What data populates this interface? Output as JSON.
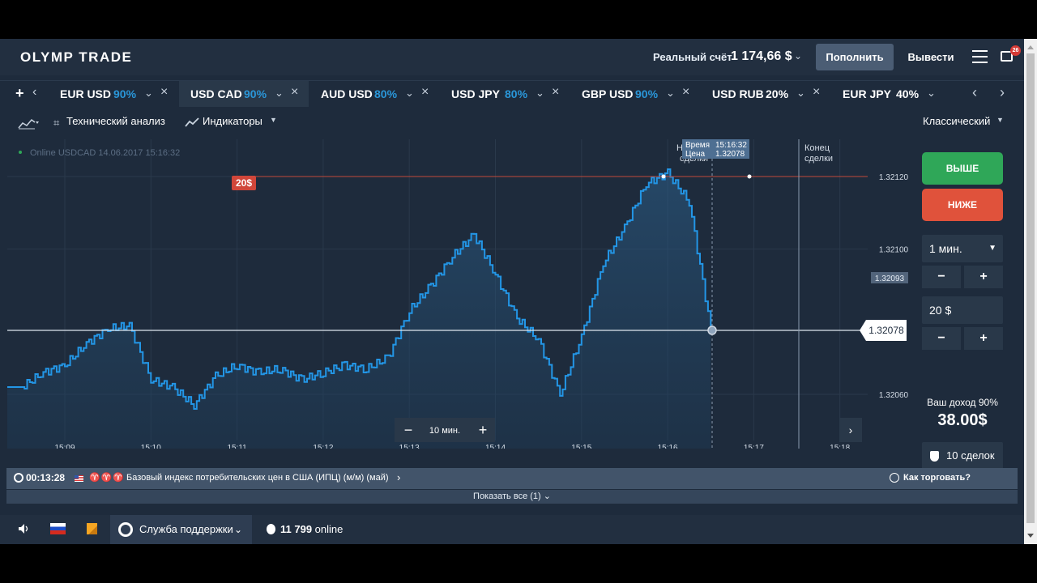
{
  "header": {
    "logo": "OLYMP TRADE",
    "balance_label": "Реальный счёт",
    "balance_value": "1 174,66 $",
    "deposit_label": "Пополнить",
    "withdraw_label": "Вывести",
    "notifications_count": "26"
  },
  "tabs": [
    {
      "pair": "EUR USD",
      "pct": "90%",
      "active": false
    },
    {
      "pair": "USD CAD",
      "pct": "90%",
      "active": true
    },
    {
      "pair": "AUD USD",
      "pct": "80%",
      "active": false
    },
    {
      "pair": "USD JPY",
      "pct": "80%",
      "active": false
    },
    {
      "pair": "GBP USD",
      "pct": "90%",
      "active": false
    },
    {
      "pair": "USD RUB",
      "pct": "20%",
      "active": false
    },
    {
      "pair": "EUR JPY",
      "pct": "40%",
      "active": false
    }
  ],
  "toolbar": {
    "tech_analysis": "Технический анализ",
    "indicators": "Индикаторы",
    "chart_mode": "Классический"
  },
  "chart": {
    "online_label": "Online USDCAD 14.06.2017 15:16:32",
    "bet_marker": "20$",
    "current_price": "1.32078",
    "secondary_price": "1.32093",
    "tooltip_time_label": "Время",
    "tooltip_time": "15:16:32",
    "tooltip_price_label": "Цена",
    "tooltip_price": "1.32078",
    "deal_start_label": "Начало сделки",
    "deal_end_label": "Конец сделки",
    "zoom_label": "10 мин.",
    "zoom_minus": "−",
    "zoom_plus": "+"
  },
  "chart_data": {
    "type": "area",
    "title": "",
    "xlabel": "",
    "ylabel": "",
    "x_ticks": [
      "15:09",
      "15:10",
      "15:11",
      "15:12",
      "15:13",
      "15:14",
      "15:15",
      "15:16",
      "15:17",
      "15:18"
    ],
    "y_ticks": [
      "1.32120",
      "1.32100",
      "1.32060"
    ],
    "ylim": [
      1.3205,
      1.3213
    ],
    "series": [
      {
        "name": "",
        "x": [
          "15:08:30",
          "15:08:45",
          "15:09:00",
          "15:09:15",
          "15:09:30",
          "15:09:45",
          "15:10:00",
          "15:10:15",
          "15:10:30",
          "15:10:45",
          "15:11:00",
          "15:11:15",
          "15:11:30",
          "15:11:45",
          "15:12:00",
          "15:12:15",
          "15:12:30",
          "15:12:45",
          "15:13:00",
          "15:13:15",
          "15:13:30",
          "15:13:45",
          "15:14:00",
          "15:14:15",
          "15:14:30",
          "15:14:45",
          "15:15:00",
          "15:15:15",
          "15:15:30",
          "15:15:45",
          "15:16:00",
          "15:16:15",
          "15:16:30"
        ],
        "values": [
          1.32062,
          1.32066,
          1.32068,
          1.32074,
          1.32078,
          1.32079,
          1.32064,
          1.32062,
          1.32057,
          1.32065,
          1.32068,
          1.32066,
          1.32067,
          1.32064,
          1.32066,
          1.32068,
          1.32067,
          1.3207,
          1.32083,
          1.3209,
          1.32098,
          1.32104,
          1.32093,
          1.32081,
          1.32075,
          1.3206,
          1.32076,
          1.32096,
          1.32106,
          1.32118,
          1.32121,
          1.32113,
          1.32078
        ]
      }
    ],
    "grid": true
  },
  "right": {
    "up_label": "ВЫШЕ",
    "down_label": "НИЖЕ",
    "duration": "1 мин.",
    "amount": "20 $",
    "minus": "−",
    "plus": "+",
    "income_label": "Ваш доход 90%",
    "income_value": "38.00$",
    "deals_label": "10 сделок"
  },
  "news": {
    "timer": "00:13:28",
    "text": "Базовый индекс потребительских цен в США (ИПЦ) (м/м) (май)",
    "how_to_trade": "Как торговать?",
    "show_all": "Показать все (1)"
  },
  "footer": {
    "support": "Служба поддержки",
    "online_count": "11 799",
    "online_word": "online"
  }
}
